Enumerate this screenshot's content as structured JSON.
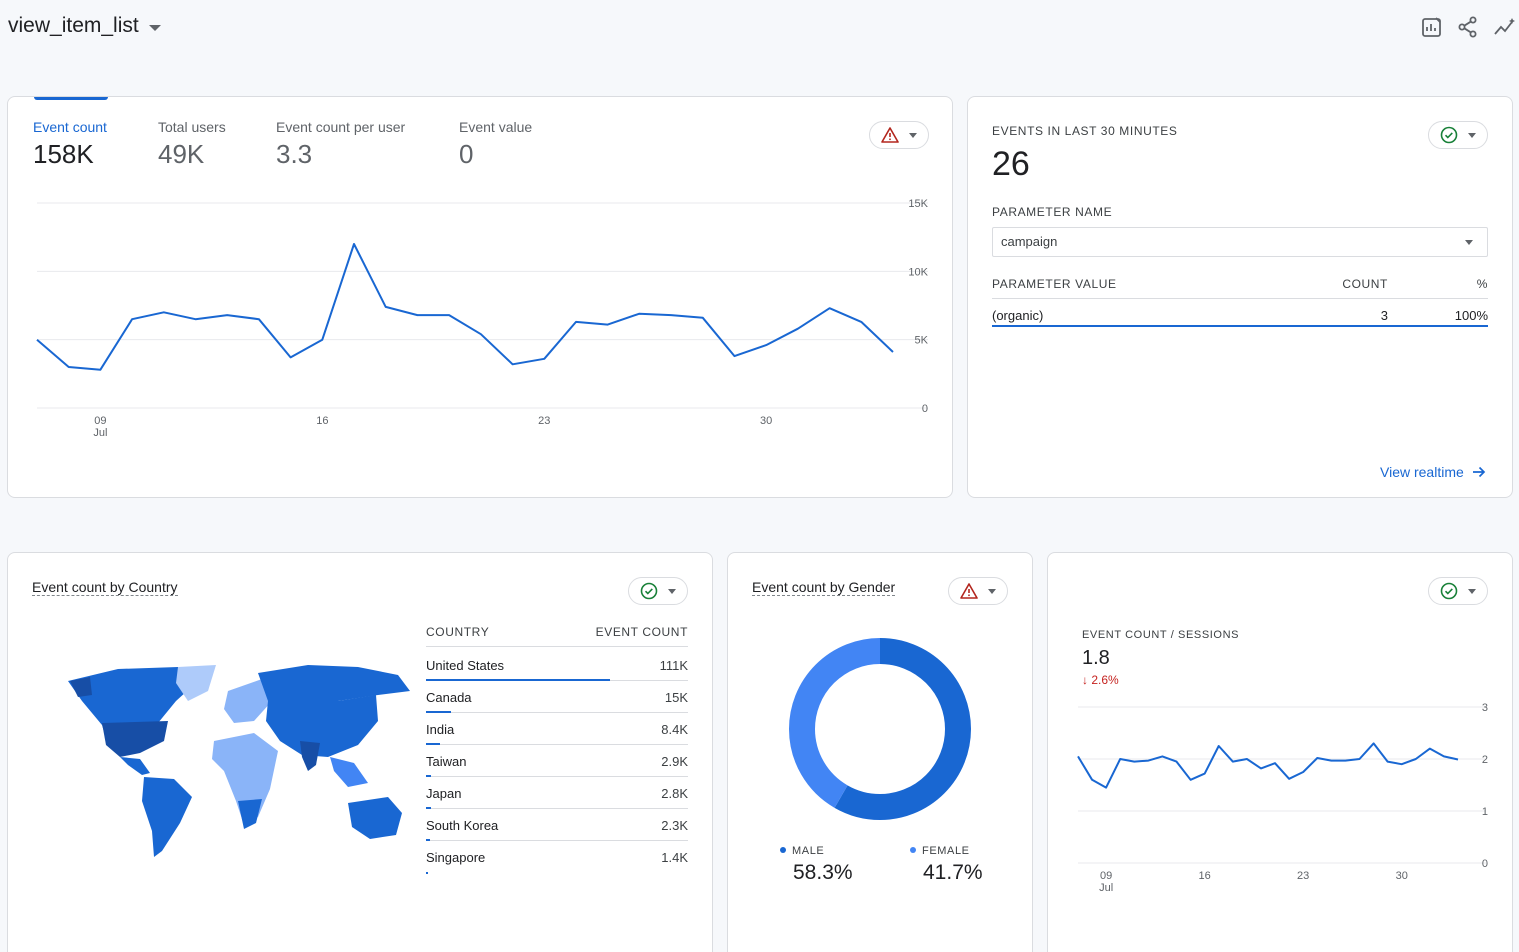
{
  "header": {
    "title": "view_item_list",
    "icons": [
      "customize-report-icon",
      "share-icon",
      "insights-icon"
    ]
  },
  "summary_card": {
    "metrics": [
      {
        "label": "Event count",
        "value": "158K",
        "active": true
      },
      {
        "label": "Total users",
        "value": "49K",
        "active": false
      },
      {
        "label": "Event count per user",
        "value": "3.3",
        "active": false
      },
      {
        "label": "Event value",
        "value": "0",
        "active": false
      }
    ],
    "status_icon": "warning-icon"
  },
  "realtime_card": {
    "heading": "EVENTS IN LAST 30 MINUTES",
    "count": "26",
    "param_name_label": "PARAMETER NAME",
    "param_name_value": "campaign",
    "columns": [
      "PARAMETER VALUE",
      "COUNT",
      "%"
    ],
    "rows": [
      {
        "value": "(organic)",
        "count": "3",
        "pct": "100%"
      }
    ],
    "link": "View realtime",
    "status_icon": "check-circle-icon"
  },
  "country_card": {
    "title": "Event count by Country",
    "columns": [
      "COUNTRY",
      "EVENT COUNT"
    ],
    "rows": [
      {
        "country": "United States",
        "count": "111K",
        "share": 1.0
      },
      {
        "country": "Canada",
        "count": "15K",
        "share": 0.135
      },
      {
        "country": "India",
        "count": "8.4K",
        "share": 0.076
      },
      {
        "country": "Taiwan",
        "count": "2.9K",
        "share": 0.026
      },
      {
        "country": "Japan",
        "count": "2.8K",
        "share": 0.025
      },
      {
        "country": "South Korea",
        "count": "2.3K",
        "share": 0.021
      },
      {
        "country": "Singapore",
        "count": "1.4K",
        "share": 0.013
      }
    ],
    "status_icon": "check-circle-icon"
  },
  "gender_card": {
    "title": "Event count by Gender",
    "male_label": "MALE",
    "male_value": "58.3%",
    "female_label": "FEMALE",
    "female_value": "41.7%",
    "status_icon": "warning-icon"
  },
  "sessions_card": {
    "label": "EVENT COUNT / SESSIONS",
    "value": "1.8",
    "change": "2.6%",
    "status_icon": "check-circle-icon"
  },
  "colors": {
    "primary": "#1967d2",
    "male": "#1967d2",
    "female": "#4285f4",
    "negative": "#c5221f",
    "warning": "#b3261e",
    "ok": "#188038"
  },
  "chart_data": [
    {
      "type": "line",
      "series": [
        {
          "values": [
            5000,
            3000,
            2800,
            6500,
            7000,
            6500,
            6800,
            6500,
            3700,
            5000,
            12000,
            7400,
            6800,
            6800,
            5400,
            3200,
            3600,
            6300,
            6100,
            6900,
            6800,
            6600,
            3800,
            4600,
            5800,
            7300,
            6300,
            4100
          ]
        }
      ],
      "x_ticks": [
        "09\nJul",
        "16",
        "23",
        "30"
      ],
      "x_tick_index": [
        2,
        9,
        16,
        23
      ],
      "y_ticks": [
        "0",
        "5K",
        "10K",
        "15K"
      ],
      "ylim": [
        0,
        15000
      ],
      "grid": true
    },
    {
      "type": "pie",
      "categories": [
        "MALE",
        "FEMALE"
      ],
      "values": [
        58.3,
        41.7
      ]
    },
    {
      "type": "line",
      "series": [
        {
          "values": [
            2.05,
            1.6,
            1.45,
            2.0,
            1.95,
            1.97,
            2.05,
            1.95,
            1.6,
            1.72,
            2.25,
            1.95,
            2.0,
            1.82,
            1.92,
            1.62,
            1.75,
            2.02,
            1.97,
            1.97,
            2.0,
            2.3,
            1.95,
            1.9,
            2.0,
            2.2,
            2.05,
            1.99
          ]
        }
      ],
      "x_ticks": [
        "09\nJul",
        "16",
        "23",
        "30"
      ],
      "x_tick_index": [
        2,
        9,
        16,
        23
      ],
      "y_ticks": [
        "0",
        "1",
        "2",
        "3"
      ],
      "ylim": [
        0,
        3
      ],
      "grid": true
    }
  ]
}
